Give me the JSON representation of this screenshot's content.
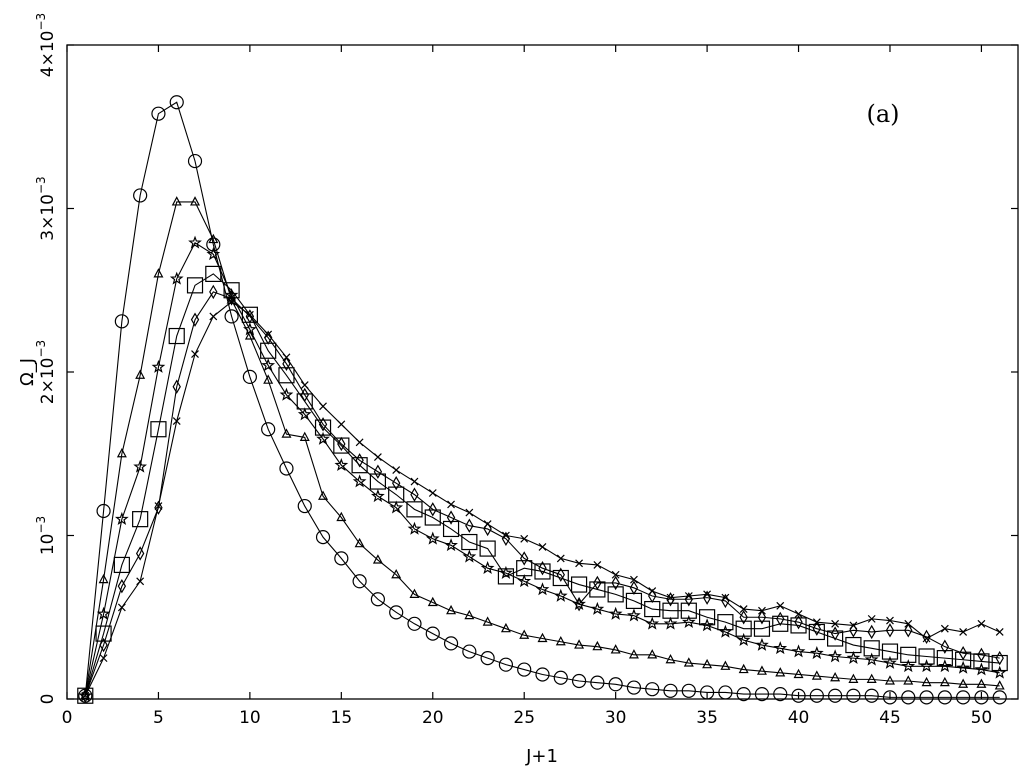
{
  "chart_data": {
    "type": "line",
    "title": "",
    "xlabel": "J+1",
    "ylabel": "Ω_J",
    "panel_label": "(a)",
    "xlim": [
      0,
      52
    ],
    "ylim": [
      0,
      0.004
    ],
    "grid": false,
    "legend": "none",
    "x_ticks": [
      {
        "value": 0,
        "label": "0"
      },
      {
        "value": 5,
        "label": "5"
      },
      {
        "value": 10,
        "label": "10"
      },
      {
        "value": 15,
        "label": "15"
      },
      {
        "value": 20,
        "label": "20"
      },
      {
        "value": 25,
        "label": "25"
      },
      {
        "value": 30,
        "label": "30"
      },
      {
        "value": 35,
        "label": "35"
      },
      {
        "value": 40,
        "label": "40"
      },
      {
        "value": 45,
        "label": "45"
      },
      {
        "value": 50,
        "label": "50"
      }
    ],
    "y_ticks": [
      {
        "value": 0,
        "base": "0",
        "exp": ""
      },
      {
        "value": 0.001,
        "base": "10",
        "exp": "−3"
      },
      {
        "value": 0.002,
        "base": "2×10",
        "exp": "−3"
      },
      {
        "value": 0.003,
        "base": "3×10",
        "exp": "−3"
      },
      {
        "value": 0.004,
        "base": "4×10",
        "exp": "−3"
      }
    ],
    "x": [
      1,
      2,
      3,
      4,
      5,
      6,
      7,
      8,
      9,
      10,
      11,
      12,
      13,
      14,
      15,
      16,
      17,
      18,
      19,
      20,
      21,
      22,
      23,
      24,
      25,
      26,
      27,
      28,
      29,
      30,
      31,
      32,
      33,
      34,
      35,
      36,
      37,
      38,
      39,
      40,
      41,
      42,
      43,
      44,
      45,
      46,
      47,
      48,
      49,
      50,
      51
    ],
    "series": [
      {
        "marker": "circle",
        "values": [
          2e-05,
          0.00115,
          0.00231,
          0.00308,
          0.00358,
          0.00365,
          0.00329,
          0.00278,
          0.00234,
          0.00197,
          0.00165,
          0.00141,
          0.00118,
          0.00099,
          0.00086,
          0.00072,
          0.00061,
          0.00053,
          0.00046,
          0.0004,
          0.00034,
          0.00029,
          0.00025,
          0.00021,
          0.00018,
          0.00015,
          0.00013,
          0.00011,
          0.0001,
          9e-05,
          7e-05,
          6e-05,
          5e-05,
          5e-05,
          4e-05,
          4e-05,
          3e-05,
          3e-05,
          3e-05,
          2e-05,
          2e-05,
          2e-05,
          2e-05,
          2e-05,
          1e-05,
          1e-05,
          1e-05,
          1e-05,
          1e-05,
          1e-05,
          1e-05
        ]
      },
      {
        "marker": "triangle",
        "values": [
          2e-05,
          0.00073,
          0.0015,
          0.00198,
          0.0026,
          0.00304,
          0.00304,
          0.00281,
          0.00244,
          0.00222,
          0.00195,
          0.00162,
          0.0016,
          0.00124,
          0.00111,
          0.00095,
          0.00085,
          0.00076,
          0.00064,
          0.00059,
          0.00054,
          0.00051,
          0.00047,
          0.00043,
          0.00039,
          0.00037,
          0.00035,
          0.00033,
          0.00032,
          0.0003,
          0.00027,
          0.00027,
          0.00024,
          0.00022,
          0.00021,
          0.0002,
          0.00018,
          0.00017,
          0.00016,
          0.00015,
          0.00014,
          0.00013,
          0.00012,
          0.00012,
          0.00011,
          0.00011,
          0.0001,
          0.0001,
          9e-05,
          9e-05,
          8e-05
        ]
      },
      {
        "marker": "star",
        "values": [
          2e-05,
          0.00052,
          0.0011,
          0.00142,
          0.00203,
          0.00257,
          0.00279,
          0.00272,
          0.00247,
          0.00226,
          0.00204,
          0.00186,
          0.00174,
          0.00159,
          0.00143,
          0.00133,
          0.00124,
          0.00117,
          0.00104,
          0.00098,
          0.00094,
          0.00087,
          0.0008,
          0.00077,
          0.00072,
          0.00067,
          0.00063,
          0.00058,
          0.00055,
          0.00052,
          0.00051,
          0.00046,
          0.00046,
          0.00047,
          0.00045,
          0.00041,
          0.00036,
          0.00033,
          0.00031,
          0.00029,
          0.00028,
          0.00026,
          0.00025,
          0.00024,
          0.00022,
          0.0002,
          0.0002,
          0.0002,
          0.00019,
          0.00018,
          0.00016
        ]
      },
      {
        "marker": "square",
        "values": [
          2e-05,
          0.0004,
          0.00082,
          0.0011,
          0.00165,
          0.00222,
          0.00253,
          0.0026,
          0.0025,
          0.00235,
          0.00213,
          0.00198,
          0.00182,
          0.00166,
          0.00155,
          0.00143,
          0.00133,
          0.00125,
          0.00116,
          0.00111,
          0.00104,
          0.00096,
          0.00092,
          0.00075,
          0.0008,
          0.00078,
          0.00074,
          0.0007,
          0.00067,
          0.00064,
          0.0006,
          0.00055,
          0.00054,
          0.00054,
          0.0005,
          0.00047,
          0.00043,
          0.00043,
          0.00046,
          0.00045,
          0.00041,
          0.00037,
          0.00033,
          0.00031,
          0.00029,
          0.00027,
          0.00026,
          0.00025,
          0.00024,
          0.00023,
          0.00022
        ]
      },
      {
        "marker": "diamond",
        "values": [
          2e-05,
          0.00033,
          0.00069,
          0.00089,
          0.00117,
          0.00191,
          0.00232,
          0.00249,
          0.00245,
          0.00234,
          0.00221,
          0.00205,
          0.00186,
          0.00168,
          0.00156,
          0.00146,
          0.00139,
          0.00132,
          0.00125,
          0.00116,
          0.00111,
          0.00106,
          0.00104,
          0.00098,
          0.00086,
          0.0008,
          0.00076,
          0.00058,
          0.00071,
          0.00071,
          0.00068,
          0.00063,
          0.00061,
          0.00061,
          0.00062,
          0.0006,
          0.0005,
          0.0005,
          0.00049,
          0.00047,
          0.00043,
          0.0004,
          0.00042,
          0.00041,
          0.00042,
          0.00042,
          0.00038,
          0.00032,
          0.00028,
          0.00027,
          0.00025
        ]
      },
      {
        "marker": "cross",
        "values": [
          2e-05,
          0.00025,
          0.00056,
          0.00072,
          0.00118,
          0.0017,
          0.00211,
          0.00234,
          0.00243,
          0.00235,
          0.00223,
          0.00209,
          0.00192,
          0.00179,
          0.00168,
          0.00157,
          0.00148,
          0.0014,
          0.00133,
          0.00126,
          0.00119,
          0.00114,
          0.00107,
          0.001,
          0.00098,
          0.00093,
          0.00086,
          0.00083,
          0.00082,
          0.00076,
          0.00073,
          0.00066,
          0.00062,
          0.00063,
          0.00064,
          0.00062,
          0.00055,
          0.00054,
          0.00057,
          0.00052,
          0.00047,
          0.00046,
          0.00045,
          0.00049,
          0.00048,
          0.00046,
          0.00037,
          0.00043,
          0.00041,
          0.00046,
          0.00041
        ]
      }
    ]
  }
}
